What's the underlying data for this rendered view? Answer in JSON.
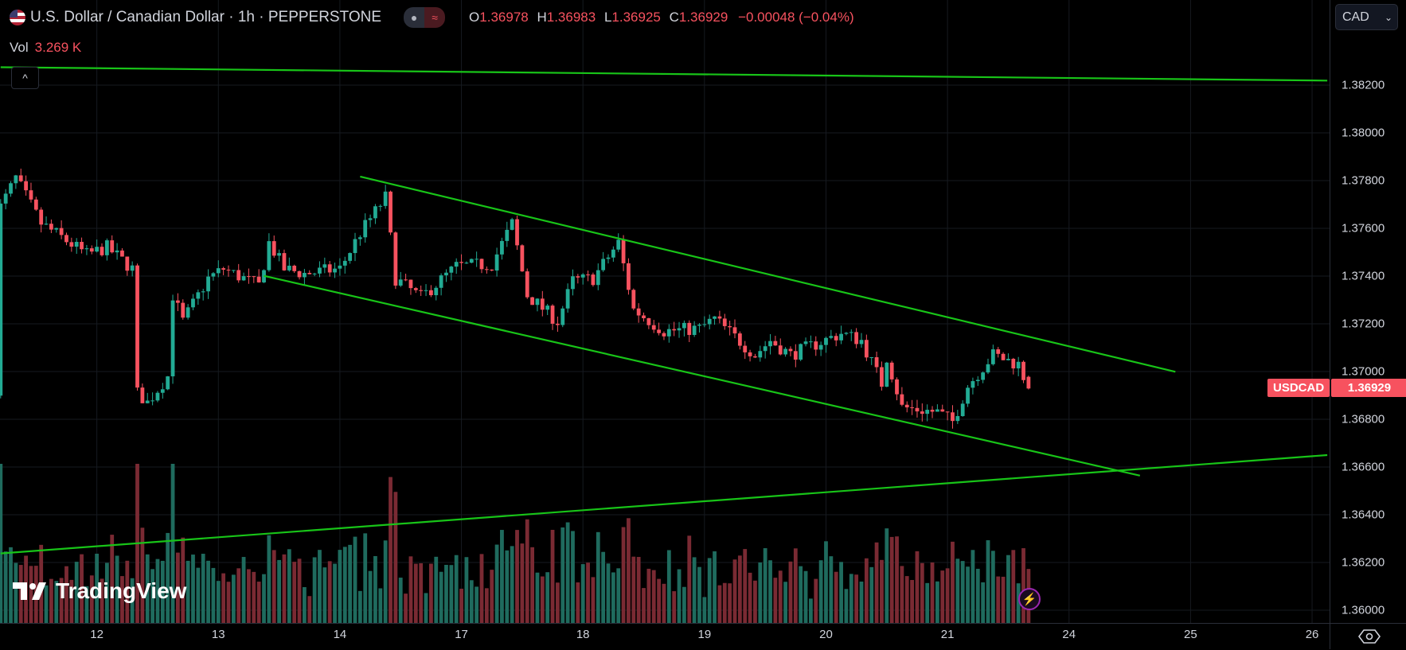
{
  "header": {
    "symbol_title": "U.S. Dollar / Canadian Dollar · 1h · PEPPERSTONE",
    "flag_icon": "us-ca-flag-icon",
    "ohlc": {
      "o_label": "O",
      "o": "1.36978",
      "h_label": "H",
      "h": "1.36983",
      "l_label": "L",
      "l": "1.36925",
      "c_label": "C",
      "c": "1.36929",
      "change": "−0.00048 (−0.04%)"
    },
    "vol_label": "Vol",
    "vol_value": "3.269 K"
  },
  "currency_select": {
    "value": "CAD"
  },
  "price_badge": {
    "symbol": "USDCAD",
    "price": "1.36929"
  },
  "logo": "TradingView",
  "colors": {
    "up": "#22ab94",
    "down": "#f7525f",
    "trendline": "#18c418",
    "background": "#000000",
    "grid": "#161a20"
  },
  "chart_data": {
    "type": "candlestick",
    "timeframe": "1h",
    "y_ticks": [
      "1.38200",
      "1.38000",
      "1.37800",
      "1.37600",
      "1.37400",
      "1.37200",
      "1.37000",
      "1.36800",
      "1.36600",
      "1.36400",
      "1.36200",
      "1.36000"
    ],
    "x_ticks": [
      "12",
      "13",
      "14",
      "17",
      "18",
      "19",
      "20",
      "21",
      "24",
      "25",
      "26"
    ],
    "ylim": [
      1.3598,
      1.3842
    ],
    "grid": true,
    "last_bar": {
      "open": 1.36978,
      "high": 1.36983,
      "low": 1.36925,
      "close": 1.36929
    },
    "price_path": [
      [
        "11",
        5,
        1.3769
      ],
      [
        "11",
        8,
        1.3781
      ],
      [
        "11",
        13,
        1.3762
      ],
      [
        "11",
        22,
        1.3749
      ],
      [
        "12",
        2,
        1.3752
      ],
      [
        "12",
        7,
        1.3743
      ],
      [
        "12",
        8,
        1.3691
      ],
      [
        "12",
        10,
        1.3687
      ],
      [
        "12",
        14,
        1.3698
      ],
      [
        "12",
        15,
        1.3732
      ],
      [
        "12",
        17,
        1.3721
      ],
      [
        "12",
        22,
        1.3739
      ],
      [
        "13",
        1,
        1.3743
      ],
      [
        "13",
        8,
        1.3736
      ],
      [
        "13",
        10,
        1.3754
      ],
      [
        "13",
        13,
        1.3743
      ],
      [
        "13",
        17,
        1.3741
      ],
      [
        "14",
        0,
        1.3743
      ],
      [
        "14",
        4,
        1.3758
      ],
      [
        "14",
        9,
        1.3773
      ],
      [
        "14",
        11,
        1.3739
      ],
      [
        "14",
        16,
        1.3731
      ],
      [
        "14",
        23,
        1.3744
      ],
      [
        "17",
        6,
        1.3745
      ],
      [
        "17",
        10,
        1.3762
      ],
      [
        "17",
        13,
        1.3732
      ],
      [
        "17",
        19,
        1.3721
      ],
      [
        "17",
        22,
        1.3738
      ],
      [
        "18",
        2,
        1.3739
      ],
      [
        "18",
        7,
        1.3754
      ],
      [
        "18",
        10,
        1.3726
      ],
      [
        "18",
        16,
        1.3717
      ],
      [
        "18",
        23,
        1.3718
      ],
      [
        "19",
        2,
        1.3722
      ],
      [
        "19",
        10,
        1.3707
      ],
      [
        "19",
        13,
        1.3713
      ],
      [
        "19",
        17,
        1.3707
      ],
      [
        "20",
        3,
        1.3716
      ],
      [
        "20",
        7,
        1.3713
      ],
      [
        "20",
        11,
        1.3695
      ],
      [
        "20",
        12,
        1.3706
      ],
      [
        "20",
        15,
        1.3685
      ],
      [
        "20",
        22,
        1.3683
      ],
      [
        "21",
        1,
        1.3679
      ],
      [
        "21",
        4,
        1.3694
      ],
      [
        "21",
        9,
        1.3707
      ],
      [
        "21",
        14,
        1.3703
      ],
      [
        "21",
        16,
        1.36929
      ]
    ],
    "trendlines": [
      {
        "from": [
          "11",
          5,
          1.38275
        ],
        "to": [
          "26",
          3,
          1.38219
        ]
      },
      {
        "from": [
          "14",
          4,
          1.37817
        ],
        "to": [
          "24",
          21,
          1.36999
        ]
      },
      {
        "from": [
          "13",
          9,
          1.37401
        ],
        "to": [
          "24",
          14,
          1.36564
        ]
      },
      {
        "from": [
          "11",
          5,
          1.36238
        ],
        "to": [
          "26",
          3,
          1.3665
        ]
      }
    ]
  }
}
